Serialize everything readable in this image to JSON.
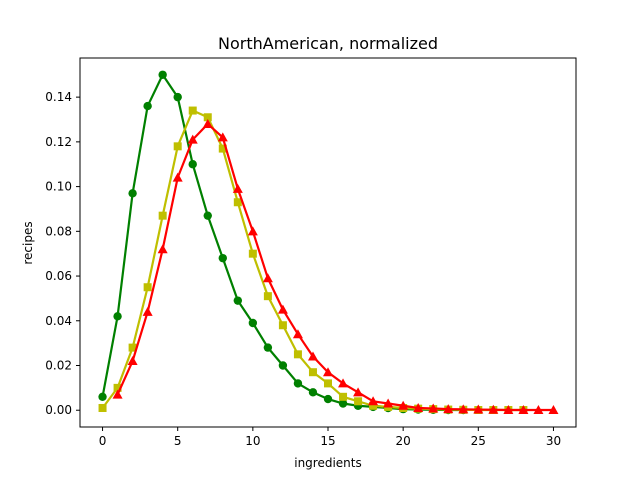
{
  "chart_data": {
    "type": "line",
    "title": "NorthAmerican, normalized",
    "xlabel": "ingredients",
    "ylabel": "recipes",
    "xlim": [
      -1.5,
      31.5
    ],
    "ylim": [
      -0.0075,
      0.1575
    ],
    "xticks": [
      0,
      5,
      10,
      15,
      20,
      25,
      30
    ],
    "yticks": [
      0.0,
      0.02,
      0.04,
      0.06,
      0.08,
      0.1,
      0.12,
      0.14
    ],
    "xtick_labels": [
      "0",
      "5",
      "10",
      "15",
      "20",
      "25",
      "30"
    ],
    "ytick_labels": [
      "0.00",
      "0.02",
      "0.04",
      "0.06",
      "0.08",
      "0.10",
      "0.12",
      "0.14"
    ],
    "grid": false,
    "series": [
      {
        "name": "green-circles",
        "color": "#008000",
        "marker": "circle",
        "x": [
          0,
          1,
          2,
          3,
          4,
          5,
          6,
          7,
          8,
          9,
          10,
          11,
          12,
          13,
          14,
          15,
          16,
          17,
          18,
          19,
          20,
          21,
          22,
          23,
          24
        ],
        "y": [
          0.006,
          0.042,
          0.097,
          0.136,
          0.15,
          0.14,
          0.11,
          0.087,
          0.068,
          0.049,
          0.039,
          0.028,
          0.02,
          0.012,
          0.008,
          0.005,
          0.003,
          0.002,
          0.0015,
          0.001,
          0.0005,
          0.0003,
          0.0002,
          0.0001,
          0.0001
        ]
      },
      {
        "name": "yellow-squares",
        "color": "#bfbf00",
        "marker": "square",
        "x": [
          0,
          1,
          2,
          3,
          4,
          5,
          6,
          7,
          8,
          9,
          10,
          11,
          12,
          13,
          14,
          15,
          16,
          17,
          18,
          19,
          20,
          21,
          22,
          23,
          24,
          25,
          26,
          27,
          28
        ],
        "y": [
          0.001,
          0.01,
          0.028,
          0.055,
          0.087,
          0.118,
          0.134,
          0.131,
          0.117,
          0.093,
          0.07,
          0.051,
          0.038,
          0.025,
          0.017,
          0.012,
          0.006,
          0.004,
          0.002,
          0.0015,
          0.001,
          0.0007,
          0.0005,
          0.0003,
          0.0002,
          0.0001,
          0.0001,
          0.0001,
          0.0001
        ]
      },
      {
        "name": "red-triangles",
        "color": "#ff0000",
        "marker": "triangle",
        "x": [
          1,
          2,
          3,
          4,
          5,
          6,
          7,
          8,
          9,
          10,
          11,
          12,
          13,
          14,
          15,
          16,
          17,
          18,
          19,
          20,
          21,
          22,
          23,
          24,
          25,
          26,
          27,
          28,
          29,
          30
        ],
        "y": [
          0.007,
          0.022,
          0.044,
          0.072,
          0.104,
          0.121,
          0.128,
          0.122,
          0.099,
          0.08,
          0.059,
          0.045,
          0.034,
          0.024,
          0.017,
          0.012,
          0.008,
          0.004,
          0.003,
          0.002,
          0.001,
          0.0008,
          0.0005,
          0.0004,
          0.0003,
          0.0002,
          0.0001,
          0.0001,
          0.0001,
          0.0001
        ]
      }
    ]
  }
}
